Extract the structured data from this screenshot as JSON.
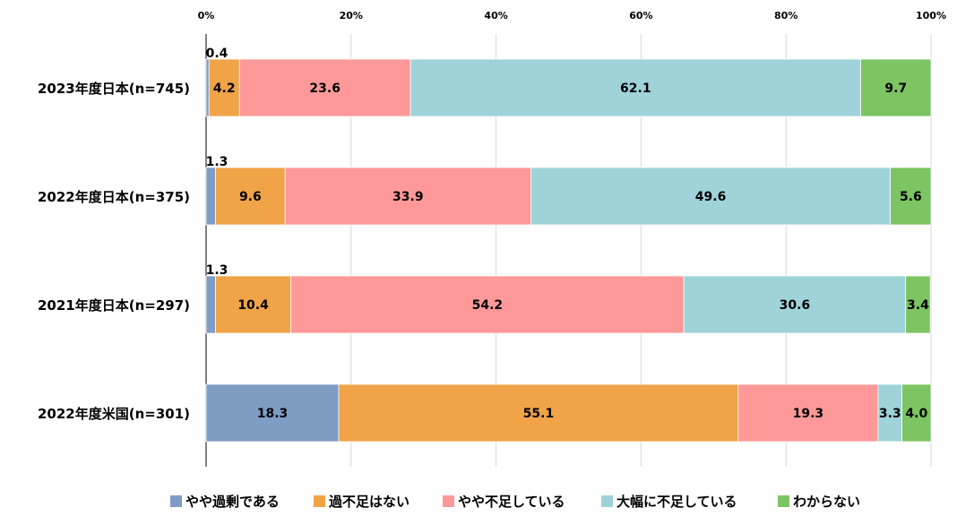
{
  "chart_data": {
    "type": "bar",
    "orientation": "horizontal",
    "stacked": "percent",
    "title": "",
    "xlabel": "",
    "ylabel": "",
    "xlim": [
      0,
      100
    ],
    "x_ticks": [
      "0%",
      "20%",
      "40%",
      "60%",
      "80%",
      "100%"
    ],
    "grid": true,
    "legend_position": "bottom",
    "categories": [
      "2023年度日本(n=745)",
      "2022年度日本(n=375)",
      "2021年度日本(n=297)",
      "2022年度米国(n=301)"
    ],
    "series": [
      {
        "name": "やや過剰である",
        "color": "#7F9CC4",
        "values": [
          0.4,
          1.3,
          1.3,
          18.3
        ]
      },
      {
        "name": "過不足はない",
        "color": "#F0A347",
        "values": [
          4.2,
          9.6,
          10.4,
          55.1
        ]
      },
      {
        "name": "やや不足している",
        "color": "#FF9999",
        "values": [
          23.6,
          33.9,
          54.2,
          19.3
        ]
      },
      {
        "name": "大幅に不足している",
        "color": "#9FD3D9",
        "values": [
          62.1,
          49.6,
          30.6,
          3.3
        ]
      },
      {
        "name": "わからない",
        "color": "#7DC462",
        "values": [
          9.7,
          5.6,
          3.4,
          4.0
        ]
      }
    ],
    "value_labels": [
      [
        "0.4",
        "4.2",
        "23.6",
        "62.1",
        "9.7"
      ],
      [
        "1.3",
        "9.6",
        "33.9",
        "49.6",
        "5.6"
      ],
      [
        "1.3",
        "10.4",
        "54.2",
        "30.6",
        "3.4"
      ],
      [
        "18.3",
        "55.1",
        "19.3",
        "3.3",
        "4.0"
      ]
    ]
  }
}
